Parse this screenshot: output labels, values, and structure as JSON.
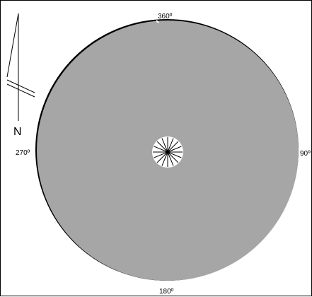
{
  "rose": {
    "labels": {
      "north": "360º",
      "east": "90º",
      "south": "180º",
      "west": "270º"
    },
    "north_arrow_label": "N",
    "colors": {
      "disc": "#a6a6a6",
      "outline": "#000000",
      "center": "#ffffff",
      "spokes": "#000000"
    }
  }
}
